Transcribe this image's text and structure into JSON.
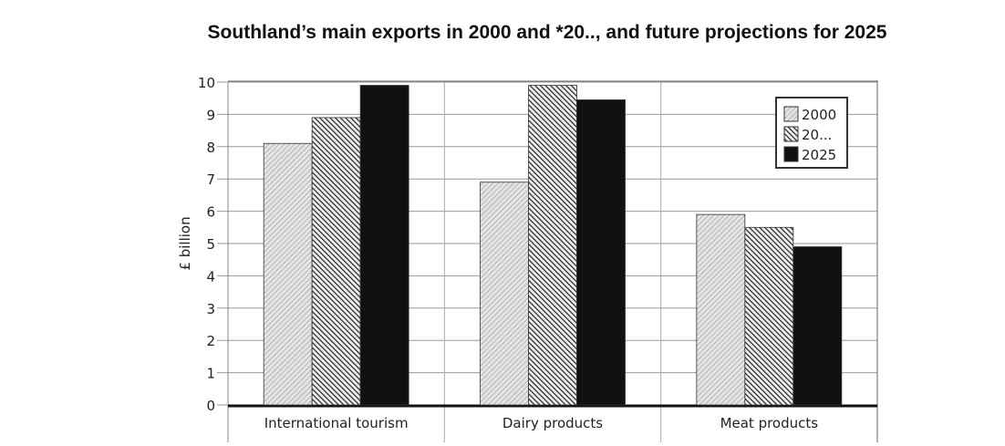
{
  "chart_data": {
    "type": "bar",
    "title": "Southland’s main exports in 2000 and *20..,  and future projections for 2025",
    "xlabel": "",
    "ylabel": "£ billion",
    "ylim": [
      0,
      10
    ],
    "yticks": [
      "0",
      "1",
      "2",
      "3",
      "4",
      "5",
      "6",
      "7",
      "8",
      "9",
      "10"
    ],
    "categories": [
      "International tourism",
      "Dairy products",
      "Meat products"
    ],
    "series": [
      {
        "name": "2000",
        "values": [
          8.1,
          6.9,
          5.9
        ],
        "pattern": "light-hatch"
      },
      {
        "name": "20...",
        "values": [
          8.9,
          9.9,
          5.5
        ],
        "pattern": "dark-hatch"
      },
      {
        "name": "2025",
        "values": [
          9.9,
          9.45,
          4.9
        ],
        "pattern": "solid-black"
      }
    ],
    "grid": true,
    "legend": "top-right"
  }
}
